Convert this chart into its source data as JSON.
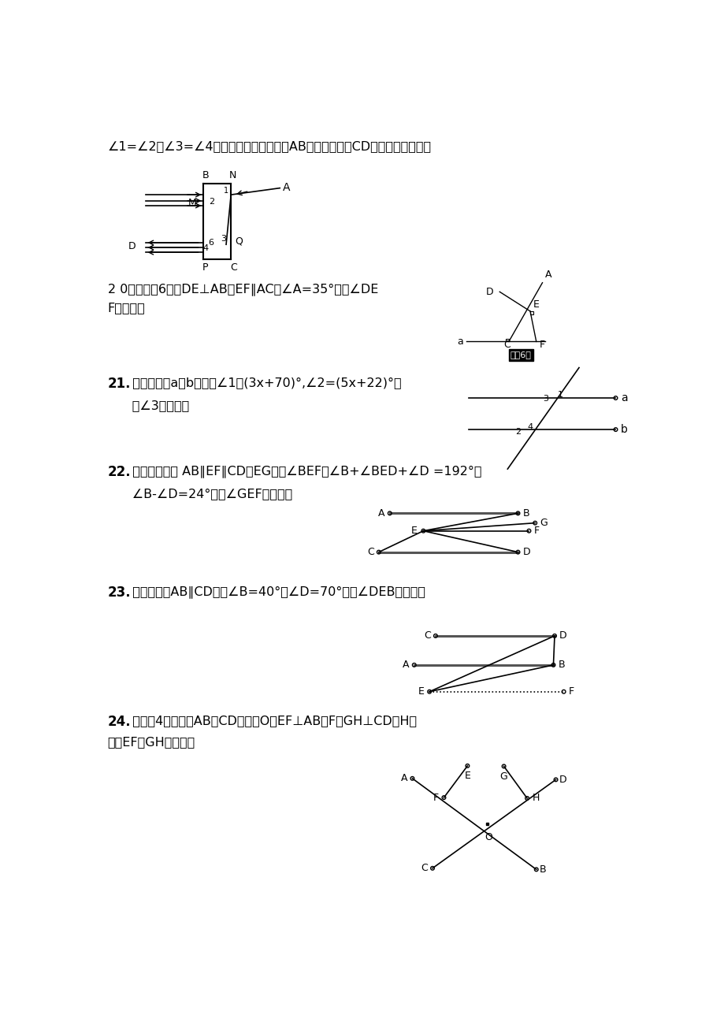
{
  "bg_color": "#ffffff",
  "title_text": "∠1=∠2，∠3=∠4，试说明，进入的光线AB与射出的光线CD平行吗？为什么？",
  "q20_text1": "2 0、如图（6），DE⊥AB，EF∥AC，∠A=35°，求∠DE",
  "q20_text2": "F的度数。",
  "q21_bold": "21.",
  "q21_text": "  如图，直线a与b平行，∠1＝(3x+70)°,∠2=(5x+22)°，",
  "q21_text2": "      求∠3的度数。",
  "q22_bold": "22.",
  "q22_text": "  已知：如图， AB∥EF∥CD，EG平分∠BEF，∠B+∠BED+∠D =192°，",
  "q22_text2": "      ∠B-∠D=24°，求∠GEF的度数。",
  "q23_bold": "23.",
  "q23_text": "  如图，已知AB∥CD，且∠B=40°，∠D=70°，求∠DEB的度数。",
  "q24_bold": "24.",
  "q24_text": "  如图（4），直线AB与CD相交于O，EF⊥AB于F，GH⊥CD于H，",
  "q24_text2": "求证EF与GH必相交。"
}
